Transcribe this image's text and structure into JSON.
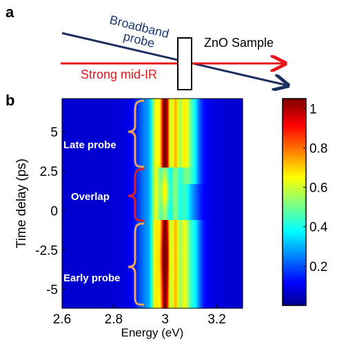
{
  "panel_a": {
    "label": "a",
    "probe_label_line1": "Broadband",
    "probe_label_line2": "probe",
    "sample_label": "ZnO Sample",
    "pump_label": "Strong mid-IR",
    "colors": {
      "probe": "#1b2f5e",
      "pump": "#e8141b",
      "probe_text": "#1b3a70"
    }
  },
  "panel_b": {
    "label": "b",
    "annotations": {
      "late": "Late probe",
      "overlap": "Overlap",
      "early": "Early probe"
    },
    "colors": {
      "bracket_late_early": "#f0a35a",
      "bracket_overlap": "#d61f26",
      "annotation_text": "#ffffff"
    }
  },
  "chart_data": {
    "type": "heatmap",
    "title": "",
    "xlabel": "Energy (eV)",
    "ylabel": "Time delay (ps)",
    "xlim": [
      2.6,
      3.3
    ],
    "ylim": [
      -6.2,
      7.1
    ],
    "x_ticks": [
      "2.6",
      "2.8",
      "3",
      "3.2"
    ],
    "x_tick_values": [
      2.6,
      2.8,
      3.0,
      3.2
    ],
    "y_ticks": [
      "5",
      "2.5",
      "0",
      "-2.5",
      "-5"
    ],
    "y_tick_values": [
      5,
      2.5,
      0,
      -2.5,
      -5
    ],
    "colorbar": {
      "range": [
        0,
        1.05
      ],
      "ticks": [
        "1",
        "0.8",
        "0.6",
        "0.4",
        "0.2"
      ],
      "tick_values": [
        1,
        0.8,
        0.6,
        0.4,
        0.2
      ],
      "colormap": "jet"
    },
    "features": {
      "peak_energy_eV": 3.0,
      "late_probe_peak": 0.95,
      "overlap_peak": 0.3,
      "early_probe_peak": 1.0
    }
  }
}
